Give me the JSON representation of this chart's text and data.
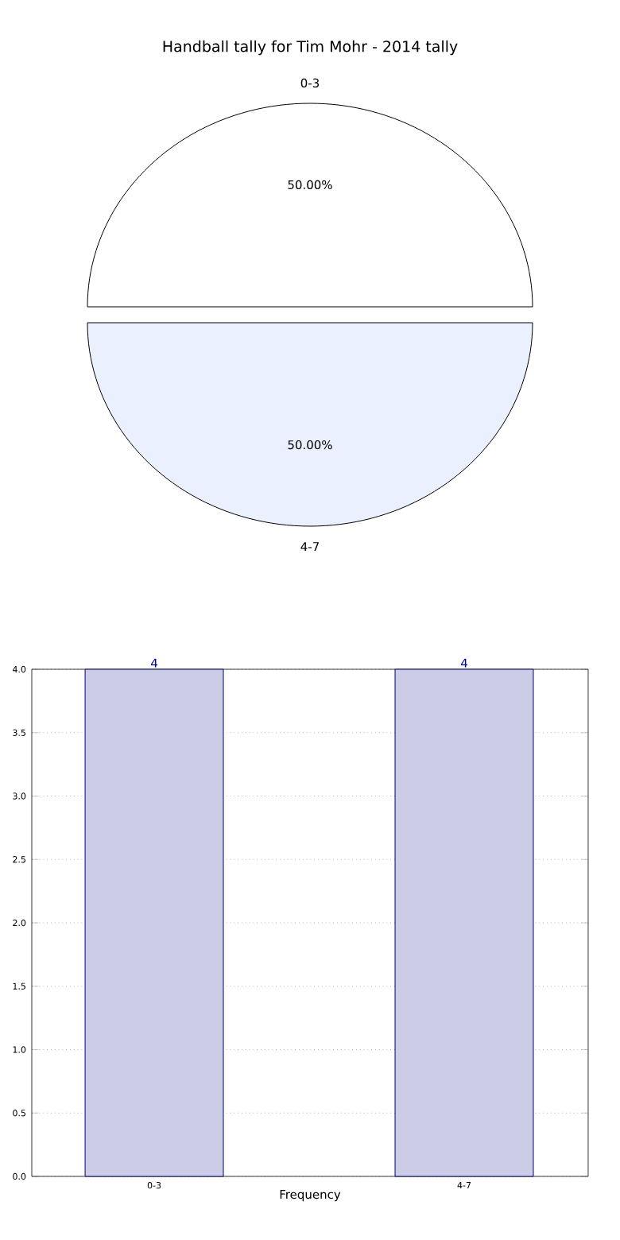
{
  "chart_data": [
    {
      "type": "pie",
      "title": "Handball tally for Tim Mohr - 2014 tally",
      "categories": [
        "0-3",
        "4-7"
      ],
      "values": [
        50,
        50
      ],
      "value_labels": [
        "50.00%",
        "50.00%"
      ],
      "colors": [
        "#ffffff",
        "#eaf0fd"
      ]
    },
    {
      "type": "bar",
      "categories": [
        "0-3",
        "4-7"
      ],
      "values": [
        4,
        4
      ],
      "color": "#ccccE6",
      "xlabel": "Frequency",
      "ylim": [
        0,
        4
      ],
      "yticks": [
        {
          "value": 0,
          "label": "0.0"
        },
        {
          "value": 0.5,
          "label": "0.5"
        },
        {
          "value": 1,
          "label": "1.0"
        },
        {
          "value": 1.5,
          "label": "1.5"
        },
        {
          "value": 2,
          "label": "2.0"
        },
        {
          "value": 2.5,
          "label": "2.5"
        },
        {
          "value": 3,
          "label": "3.0"
        },
        {
          "value": 3.5,
          "label": "3.5"
        },
        {
          "value": 4,
          "label": "4.0"
        }
      ],
      "grid": true,
      "data_labels": true
    }
  ]
}
